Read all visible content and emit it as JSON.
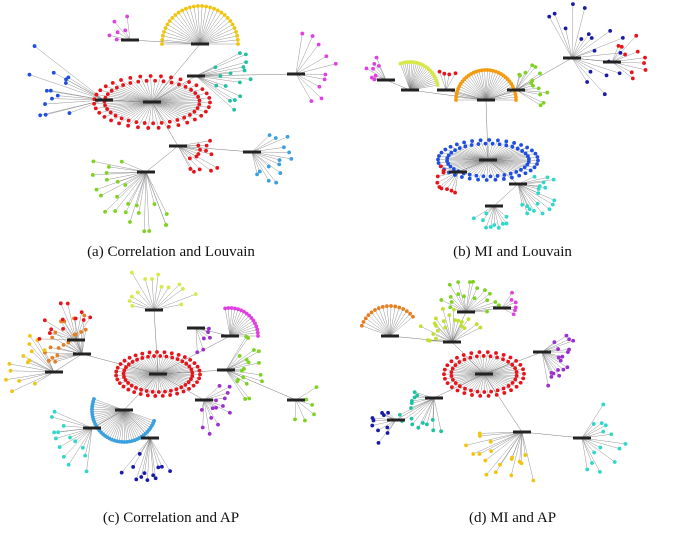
{
  "figure": {
    "panels": [
      {
        "id": "a",
        "caption": "(a) Correlation and Louvain"
      },
      {
        "id": "b",
        "caption": "(b) MI and Louvain"
      },
      {
        "id": "c",
        "caption": "(c) Correlation and AP"
      },
      {
        "id": "d",
        "caption": "(d) MI and AP"
      }
    ]
  },
  "colors": {
    "red": "#e8141b",
    "yellow": "#f1c40f",
    "orange": "#f39c12",
    "dark_orange": "#e67e22",
    "lime": "#7ed321",
    "light_lime": "#c0e030",
    "yellow_green": "#d7e84a",
    "blue": "#1f4fe0",
    "navy": "#1a1aa8",
    "sky": "#3aa0e0",
    "cyan": "#2fd8c8",
    "teal": "#1fc2a0",
    "magenta": "#e040e0",
    "purple": "#9b30d0",
    "edge": "#7a7a7a"
  }
}
